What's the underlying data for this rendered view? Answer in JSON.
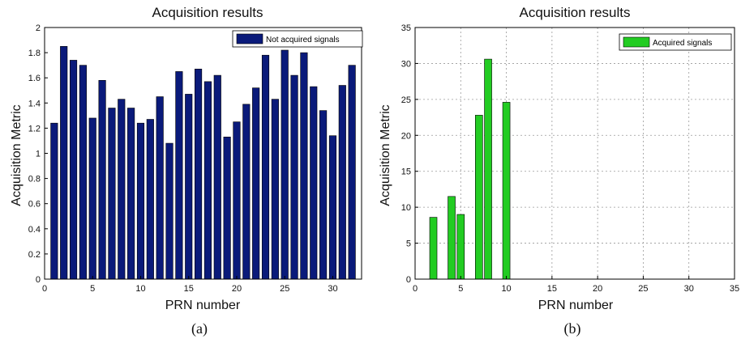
{
  "chart_data": [
    {
      "type": "bar",
      "panel_label": "(a)",
      "title": "Acquisition results",
      "xlabel": "PRN number",
      "ylabel": "Acquisition Metric",
      "xlim": [
        0,
        33
      ],
      "ylim": [
        0,
        2
      ],
      "xticks": [
        "0",
        "5",
        "10",
        "15",
        "20",
        "25",
        "30"
      ],
      "yticks": [
        "0",
        "0.2",
        "0.4",
        "0.6",
        "0.8",
        "1",
        "1.2",
        "1.4",
        "1.6",
        "1.8",
        "2"
      ],
      "grid": false,
      "legend_position": "top-right",
      "series": [
        {
          "name": "Not acquired signals",
          "color": "#0a1a7a",
          "x": [
            1,
            2,
            3,
            4,
            5,
            6,
            7,
            8,
            9,
            10,
            11,
            12,
            13,
            14,
            15,
            16,
            17,
            18,
            19,
            20,
            21,
            22,
            23,
            24,
            25,
            26,
            27,
            28,
            29,
            30,
            31,
            32
          ],
          "values": [
            1.24,
            1.85,
            1.74,
            1.7,
            1.28,
            1.58,
            1.36,
            1.43,
            1.36,
            1.24,
            1.27,
            1.45,
            1.08,
            1.65,
            1.47,
            1.67,
            1.57,
            1.62,
            1.13,
            1.25,
            1.39,
            1.52,
            1.78,
            1.43,
            1.82,
            1.62,
            1.8,
            1.53,
            1.34,
            1.14,
            1.54,
            1.7
          ]
        }
      ]
    },
    {
      "type": "bar",
      "panel_label": "(b)",
      "title": "Acquisition results",
      "xlabel": "PRN number",
      "ylabel": "Acquisition Metric",
      "xlim": [
        0,
        35
      ],
      "ylim": [
        0,
        35
      ],
      "xticks": [
        "0",
        "5",
        "10",
        "15",
        "20",
        "25",
        "30",
        "35"
      ],
      "yticks": [
        "0",
        "5",
        "10",
        "15",
        "20",
        "25",
        "30",
        "35"
      ],
      "grid": true,
      "legend_position": "top-right",
      "series": [
        {
          "name": "Acquired signals",
          "color": "#22cc22",
          "x": [
            2,
            4,
            5,
            7,
            8,
            10
          ],
          "values": [
            8.6,
            11.5,
            9.0,
            22.8,
            30.6,
            24.6
          ]
        }
      ]
    }
  ]
}
